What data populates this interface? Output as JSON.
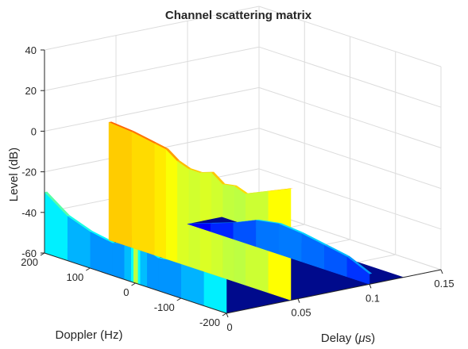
{
  "chart_data": {
    "type": "surface",
    "title": "Channel scattering matrix",
    "xlabel": "Delay (",
    "xlabel_mu": "μ",
    "xlabel_tail": "s)",
    "ylabel": "Doppler (Hz)",
    "zlabel": "Level (dB)",
    "xlim": [
      0,
      0.15
    ],
    "ylim": [
      -200,
      200
    ],
    "zlim": [
      -60,
      40
    ],
    "xticks": [
      0,
      0.05,
      0.1,
      0.15
    ],
    "xtick_labels": [
      "0",
      "0.05",
      "0.1",
      "0.15"
    ],
    "yticks": [
      -200,
      -100,
      0,
      100,
      200
    ],
    "ytick_labels": [
      "-200",
      "-100",
      "0",
      "100",
      "200"
    ],
    "zticks": [
      -60,
      -40,
      -20,
      0,
      20,
      40
    ],
    "ztick_labels": [
      "-60",
      "-40",
      "-20",
      "0",
      "20",
      "40"
    ],
    "grid": true,
    "colormap": "jet",
    "colors": {
      "background": "#ffffff",
      "grid": "#dcdcdc",
      "axis": "#262626",
      "floor": "#000a8c"
    },
    "series": [
      {
        "delay": 0.0,
        "doppler": [
          -200,
          -150,
          -100,
          -50,
          -25,
          -10,
          -5,
          0,
          5,
          10,
          25,
          50,
          100,
          150,
          200
        ],
        "level": [
          -30,
          -38,
          -42,
          -44,
          -42,
          -36,
          -28,
          0,
          -28,
          -36,
          -42,
          -44,
          -42,
          -38,
          -30
        ]
      },
      {
        "delay": 0.045,
        "doppler": [
          -200,
          -150,
          -100,
          -75,
          -50,
          -25,
          0,
          25,
          50,
          75,
          100,
          150,
          200
        ],
        "level": [
          -5,
          -10,
          -15,
          -13,
          -14,
          -10,
          -12,
          -12,
          -10,
          -6,
          -5,
          -3,
          -2
        ]
      },
      {
        "delay": 0.1,
        "doppler": [
          -200,
          -150,
          -100,
          -50,
          0,
          50,
          100,
          150,
          200
        ],
        "level": [
          -55,
          -50,
          -48,
          -46,
          -45,
          -47,
          -52,
          -56,
          -60
        ]
      }
    ],
    "floor_level": -60
  }
}
